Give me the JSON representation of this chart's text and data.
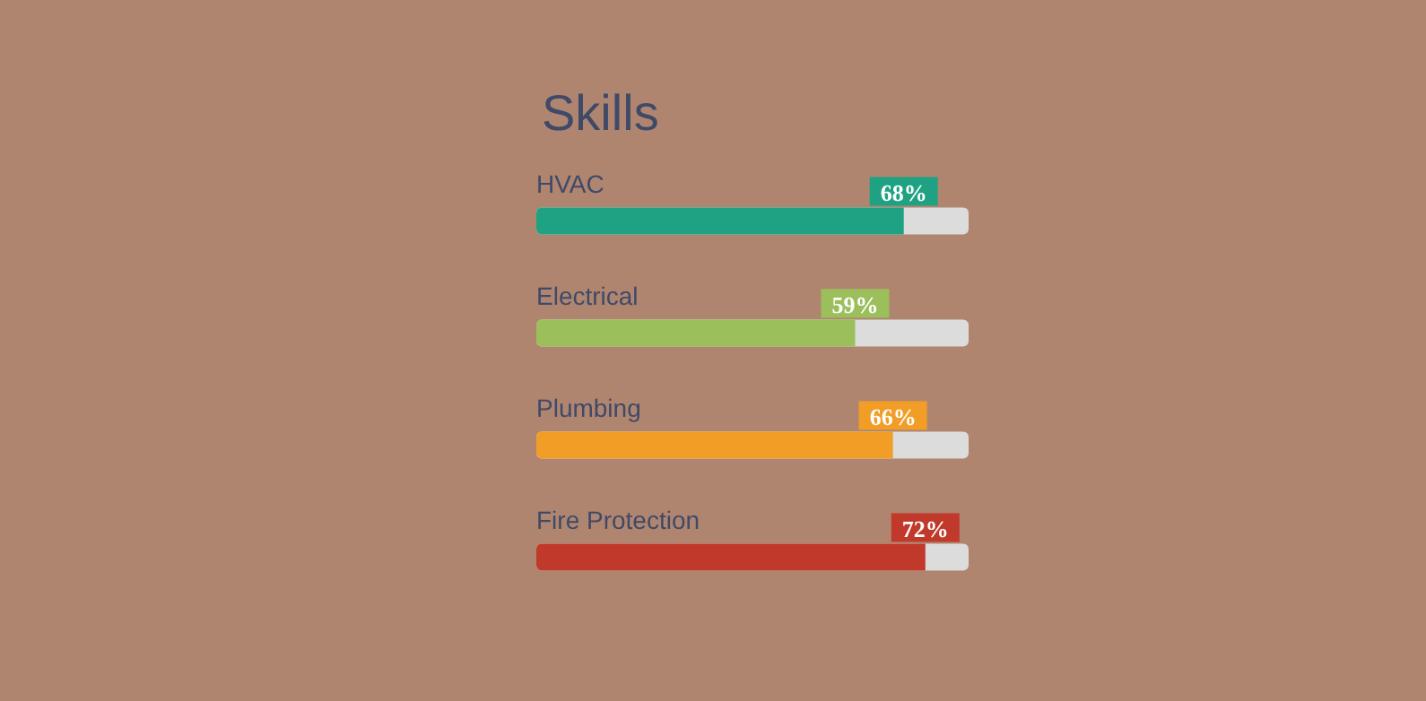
{
  "chart_data": {
    "type": "bar",
    "orientation": "horizontal",
    "title": "Skills",
    "categories": [
      "HVAC",
      "Electrical",
      "Plumbing",
      "Fire Protection"
    ],
    "values": [
      68,
      59,
      66,
      72
    ],
    "colors": [
      "#1fa283",
      "#9bbf5a",
      "#f29e26",
      "#c0392b"
    ],
    "value_labels": [
      "68%",
      "59%",
      "66%",
      "72%"
    ]
  }
}
